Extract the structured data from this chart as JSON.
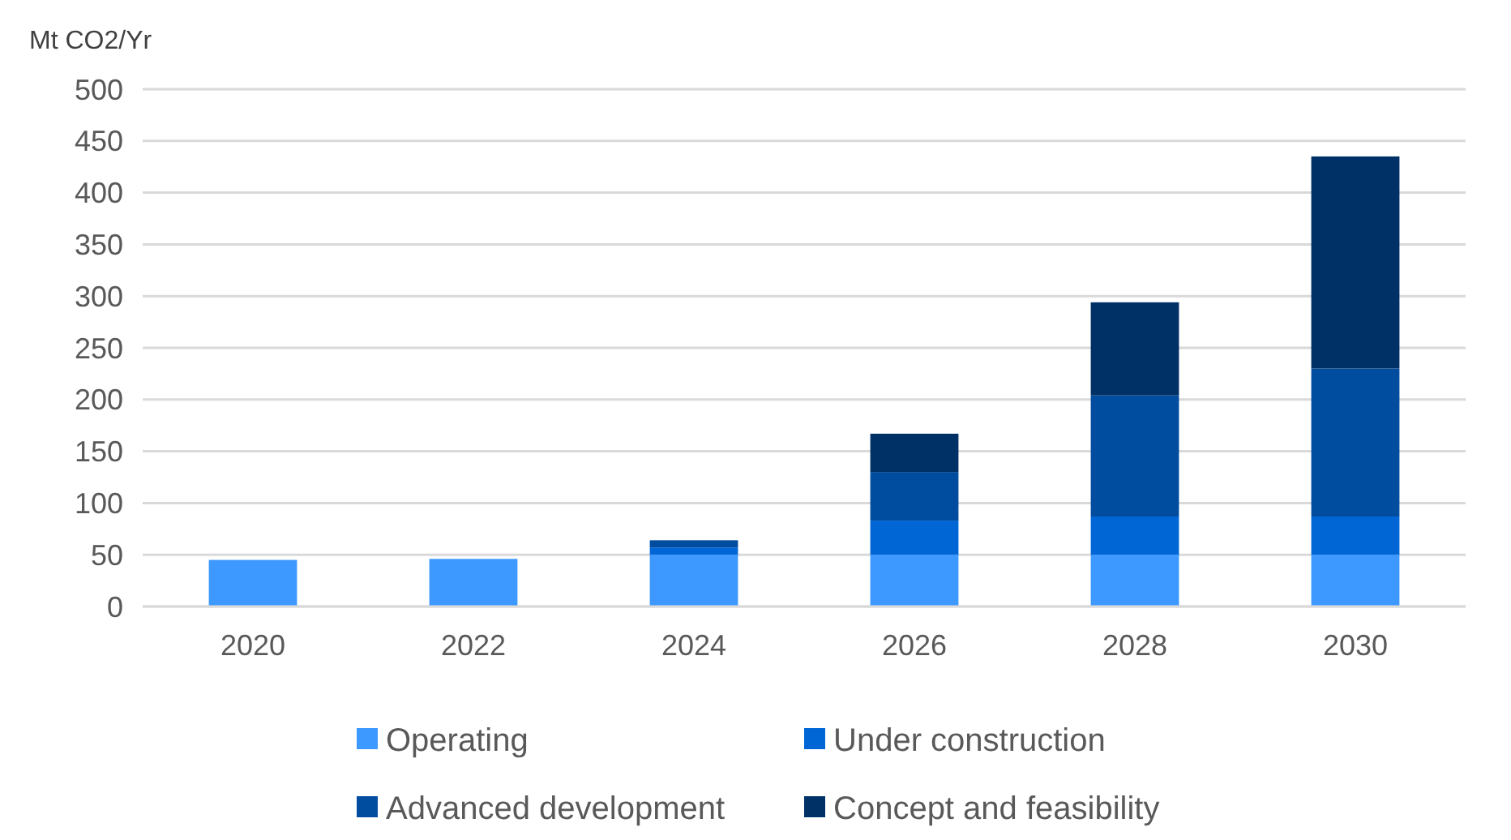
{
  "chart_data": {
    "type": "bar",
    "stacked": true,
    "ylabel": "Mt CO2/Yr",
    "categories": [
      "2020",
      "2022",
      "2024",
      "2026",
      "2028",
      "2030"
    ],
    "series": [
      {
        "name": "Operating",
        "color": "#3d98ff",
        "values": [
          45,
          46,
          50,
          50,
          50,
          50
        ]
      },
      {
        "name": "Under construction",
        "color": "#0066d6",
        "values": [
          null,
          null,
          7,
          33,
          37,
          37
        ]
      },
      {
        "name": "Advanced development",
        "color": "#004c9e",
        "values": [
          null,
          null,
          7,
          47,
          117,
          143
        ]
      },
      {
        "name": "Concept and feasibility",
        "color": "#003166",
        "values": [
          null,
          null,
          null,
          37,
          90,
          205
        ]
      }
    ],
    "ylim": [
      0,
      500
    ],
    "yticks": [
      0,
      50,
      100,
      150,
      200,
      250,
      300,
      350,
      400,
      450,
      500
    ],
    "grid": "y",
    "legend": "bottom"
  }
}
